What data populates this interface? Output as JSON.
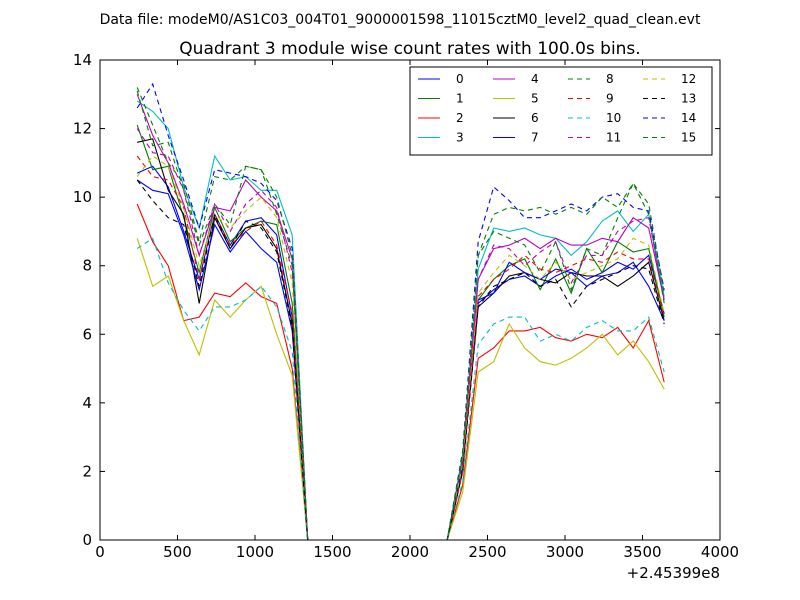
{
  "suptitle": "Data file: modeM0/AS1C03_004T01_9000001598_11015cztM0_level2_quad_clean.evt",
  "chart_data": {
    "type": "line",
    "title": "Quadrant 3 module wise count rates with 100.0s bins.",
    "xlabel": "",
    "ylabel": "",
    "x_offset_label": "+2.45399e8",
    "xlim": [
      0,
      4000
    ],
    "ylim": [
      0,
      14
    ],
    "xticks": [
      0,
      500,
      1000,
      1500,
      2000,
      2500,
      3000,
      3500,
      4000
    ],
    "yticks": [
      0,
      2,
      4,
      6,
      8,
      10,
      12,
      14
    ],
    "grid": false,
    "legend": {
      "location": "top-right",
      "columns": 4
    },
    "x": [
      240,
      340,
      440,
      540,
      640,
      740,
      840,
      940,
      1040,
      1140,
      1240,
      1340,
      1440,
      1540,
      1640,
      1740,
      1840,
      1940,
      2040,
      2140,
      2240,
      2340,
      2440,
      2540,
      2640,
      2740,
      2840,
      2940,
      3040,
      3140,
      3240,
      3340,
      3440,
      3540,
      3640
    ],
    "series": [
      {
        "name": "0",
        "color": "#0000ff",
        "dash": false,
        "values": [
          10.7,
          10.9,
          10.3,
          9.0,
          7.6,
          9.5,
          8.6,
          9.3,
          9.4,
          8.9,
          6.5,
          0,
          0,
          0,
          0,
          0,
          0,
          0,
          0,
          0,
          0,
          2.2,
          6.9,
          7.3,
          7.6,
          7.7,
          7.4,
          7.7,
          7.9,
          7.6,
          7.8,
          8.1,
          7.9,
          8.3,
          6.6
        ]
      },
      {
        "name": "1",
        "color": "#008000",
        "dash": false,
        "values": [
          12.1,
          10.8,
          10.9,
          9.4,
          7.8,
          9.7,
          8.7,
          9.1,
          9.3,
          9.2,
          6.9,
          0,
          0,
          0,
          0,
          0,
          0,
          0,
          0,
          0,
          0,
          2.0,
          7.0,
          7.6,
          8.0,
          8.2,
          7.3,
          8.2,
          7.2,
          8.5,
          7.8,
          8.7,
          8.4,
          8.5,
          6.5
        ]
      },
      {
        "name": "2",
        "color": "#ff0000",
        "dash": false,
        "values": [
          9.8,
          8.7,
          8.0,
          6.4,
          6.5,
          7.2,
          7.1,
          7.5,
          7.1,
          6.9,
          5.0,
          0,
          0,
          0,
          0,
          0,
          0,
          0,
          0,
          0,
          0,
          1.6,
          5.3,
          5.6,
          6.1,
          6.1,
          6.2,
          5.9,
          5.8,
          6.0,
          5.9,
          6.2,
          5.6,
          6.4,
          4.6
        ]
      },
      {
        "name": "3",
        "color": "#00bfbf",
        "dash": false,
        "values": [
          12.8,
          12.5,
          12.0,
          10.3,
          9.1,
          11.2,
          10.5,
          10.6,
          10.2,
          10.2,
          8.9,
          0,
          0,
          0,
          0,
          0,
          0,
          0,
          0,
          0,
          0,
          2.5,
          7.9,
          9.1,
          9.0,
          9.1,
          8.9,
          8.8,
          8.3,
          8.7,
          9.3,
          9.6,
          9.0,
          9.5,
          7.1
        ]
      },
      {
        "name": "4",
        "color": "#bf00bf",
        "dash": false,
        "values": [
          13.0,
          11.8,
          11.0,
          9.8,
          8.3,
          9.7,
          9.6,
          10.5,
          10.0,
          9.6,
          8.2,
          0,
          0,
          0,
          0,
          0,
          0,
          0,
          0,
          0,
          0,
          2.3,
          7.6,
          8.5,
          8.6,
          8.8,
          8.5,
          8.8,
          8.6,
          8.6,
          8.8,
          8.7,
          9.4,
          9.1,
          7.0
        ]
      },
      {
        "name": "5",
        "color": "#bfbf00",
        "dash": false,
        "values": [
          8.8,
          7.4,
          7.7,
          6.4,
          5.4,
          7.0,
          6.5,
          7.0,
          7.4,
          6.0,
          4.8,
          0,
          0,
          0,
          0,
          0,
          0,
          0,
          0,
          0,
          0,
          1.4,
          4.9,
          5.2,
          6.3,
          5.6,
          5.2,
          5.1,
          5.3,
          5.6,
          6.0,
          5.4,
          5.8,
          5.2,
          4.4
        ]
      },
      {
        "name": "6",
        "color": "#000000",
        "dash": false,
        "values": [
          11.6,
          11.7,
          10.2,
          9.5,
          6.9,
          9.4,
          8.5,
          9.1,
          9.2,
          8.5,
          6.3,
          0,
          0,
          0,
          0,
          0,
          0,
          0,
          0,
          0,
          0,
          2.1,
          6.8,
          7.2,
          7.7,
          7.8,
          7.6,
          7.5,
          7.8,
          7.7,
          7.7,
          7.4,
          7.7,
          8.1,
          6.4
        ]
      },
      {
        "name": "7",
        "color": "#0000ff",
        "dash": false,
        "values": [
          10.5,
          10.2,
          10.1,
          8.9,
          7.3,
          9.2,
          8.4,
          9.0,
          8.5,
          8.1,
          6.1,
          0,
          0,
          0,
          0,
          0,
          0,
          0,
          0,
          0,
          0,
          2.1,
          7.0,
          7.2,
          8.1,
          7.8,
          7.6,
          7.9,
          7.8,
          7.4,
          7.7,
          7.8,
          8.1,
          7.4,
          6.4
        ]
      },
      {
        "name": "8",
        "color": "#008000",
        "dash": true,
        "values": [
          13.1,
          11.5,
          11.6,
          10.2,
          8.6,
          9.8,
          9.2,
          10.9,
          10.8,
          9.5,
          8.0,
          0,
          0,
          0,
          0,
          0,
          0,
          0,
          0,
          0,
          0,
          2.4,
          8.3,
          9.0,
          8.8,
          8.6,
          7.8,
          8.7,
          7.3,
          8.5,
          8.3,
          9.4,
          10.4,
          9.5,
          6.9
        ]
      },
      {
        "name": "9",
        "color": "#ff0000",
        "dash": true,
        "values": [
          11.2,
          10.6,
          10.5,
          9.7,
          7.6,
          9.5,
          8.6,
          9.0,
          9.3,
          8.6,
          6.6,
          0,
          0,
          0,
          0,
          0,
          0,
          0,
          0,
          0,
          0,
          2.0,
          7.1,
          7.6,
          7.9,
          8.3,
          7.9,
          7.8,
          8.0,
          8.2,
          8.1,
          8.4,
          8.2,
          8.2,
          6.5
        ]
      },
      {
        "name": "10",
        "color": "#00bfbf",
        "dash": true,
        "values": [
          8.5,
          8.8,
          7.5,
          6.7,
          6.1,
          6.8,
          6.8,
          7.0,
          7.4,
          6.8,
          5.5,
          0,
          0,
          0,
          0,
          0,
          0,
          0,
          0,
          0,
          0,
          1.7,
          5.7,
          6.3,
          6.5,
          6.5,
          5.8,
          6.0,
          5.8,
          6.2,
          6.4,
          6.1,
          6.1,
          6.5,
          4.9
        ]
      },
      {
        "name": "11",
        "color": "#bf00bf",
        "dash": true,
        "values": [
          12.0,
          11.3,
          11.2,
          10.2,
          8.3,
          9.8,
          9.0,
          9.8,
          10.2,
          9.7,
          7.8,
          0,
          0,
          0,
          0,
          0,
          0,
          0,
          0,
          0,
          0,
          2.3,
          7.6,
          8.6,
          8.5,
          8.0,
          8.4,
          8.7,
          7.5,
          8.3,
          8.3,
          9.0,
          9.3,
          9.4,
          7.0
        ]
      },
      {
        "name": "12",
        "color": "#bfbf00",
        "dash": true,
        "values": [
          10.6,
          11.2,
          10.9,
          9.7,
          8.0,
          9.5,
          9.1,
          9.6,
          10.0,
          9.4,
          7.5,
          0,
          0,
          0,
          0,
          0,
          0,
          0,
          0,
          0,
          0,
          2.2,
          7.2,
          7.8,
          8.3,
          8.0,
          7.6,
          8.1,
          7.6,
          7.8,
          8.0,
          8.2,
          8.8,
          8.6,
          6.6
        ]
      },
      {
        "name": "13",
        "color": "#000000",
        "dash": true,
        "values": [
          10.5,
          9.9,
          9.4,
          9.2,
          7.4,
          9.5,
          8.5,
          9.3,
          9.1,
          8.4,
          6.2,
          0,
          0,
          0,
          0,
          0,
          0,
          0,
          0,
          0,
          0,
          2.0,
          6.8,
          7.4,
          7.6,
          7.8,
          7.4,
          7.6,
          6.8,
          7.4,
          7.6,
          7.8,
          8.0,
          7.9,
          6.3
        ]
      },
      {
        "name": "14",
        "color": "#0000ff",
        "dash": true,
        "values": [
          12.6,
          13.3,
          11.8,
          10.5,
          9.1,
          10.8,
          10.7,
          10.6,
          10.4,
          9.9,
          8.5,
          0,
          0,
          0,
          0,
          0,
          0,
          0,
          0,
          0,
          0,
          2.6,
          8.7,
          10.3,
          9.9,
          9.4,
          9.4,
          9.6,
          9.8,
          9.6,
          10.0,
          10.1,
          9.7,
          9.6,
          7.3
        ]
      },
      {
        "name": "15",
        "color": "#008000",
        "dash": true,
        "values": [
          13.2,
          12.1,
          11.0,
          10.4,
          8.7,
          10.6,
          10.5,
          10.9,
          10.8,
          10.0,
          8.3,
          0,
          0,
          0,
          0,
          0,
          0,
          0,
          0,
          0,
          0,
          2.5,
          8.3,
          9.5,
          9.7,
          9.6,
          9.7,
          9.5,
          9.7,
          9.5,
          10.0,
          9.7,
          10.4,
          9.8,
          7.2
        ]
      }
    ]
  }
}
